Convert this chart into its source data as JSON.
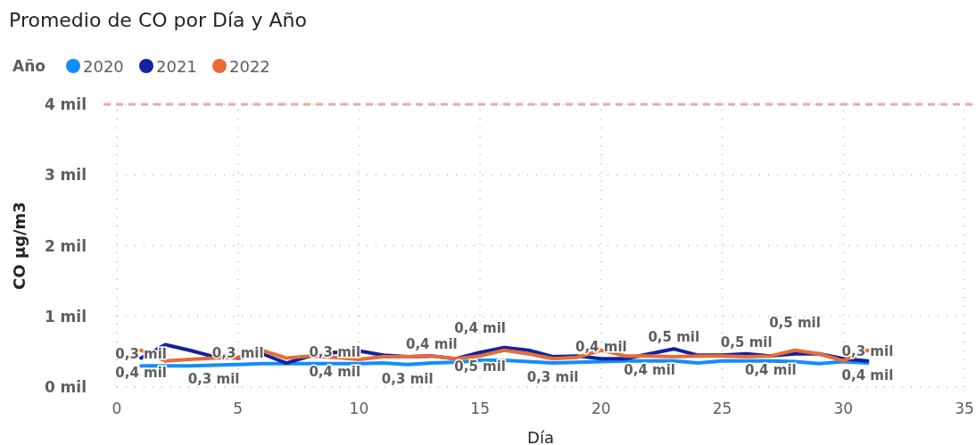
{
  "chart_data": {
    "type": "line",
    "title": "Promedio de CO por Día y Año",
    "xlabel": "Día",
    "ylabel": "CO µg/m3",
    "legend_title": "Año",
    "legend": "top left",
    "grid": true,
    "line_style": "solid",
    "marker": "none",
    "x": [
      1,
      2,
      3,
      4,
      5,
      6,
      7,
      8,
      9,
      10,
      11,
      12,
      13,
      14,
      15,
      16,
      17,
      18,
      19,
      20,
      21,
      22,
      23,
      24,
      25,
      26,
      27,
      28,
      29,
      30,
      31
    ],
    "xlim": [
      0,
      35
    ],
    "xticks": [
      0,
      5,
      10,
      15,
      20,
      25,
      30,
      35
    ],
    "ylim": [
      0,
      4
    ],
    "yticks": [
      {
        "value": 0,
        "label": "0 mil"
      },
      {
        "value": 1,
        "label": "1 mil"
      },
      {
        "value": 2,
        "label": "2 mil"
      },
      {
        "value": 3,
        "label": "3 mil"
      },
      {
        "value": 4,
        "label": "4 mil"
      }
    ],
    "series": [
      {
        "name": "2020",
        "color": "#118dff",
        "values": [
          0.3,
          0.3,
          0.3,
          0.31,
          0.32,
          0.33,
          0.33,
          0.33,
          0.33,
          0.33,
          0.34,
          0.32,
          0.34,
          0.35,
          0.38,
          0.38,
          0.36,
          0.34,
          0.35,
          0.36,
          0.37,
          0.37,
          0.37,
          0.34,
          0.37,
          0.37,
          0.37,
          0.36,
          0.33,
          0.36,
          0.34
        ],
        "value_labels": [
          "0,3 mil",
          null,
          null,
          "0,3 mil",
          "0,3 mil",
          null,
          null,
          null,
          "0,3 mil",
          null,
          null,
          "0,3 mil",
          null,
          null,
          null,
          null,
          null,
          "0,3 mil",
          null,
          null,
          null,
          null,
          null,
          null,
          null,
          null,
          null,
          null,
          null,
          null,
          "0,3 mil"
        ]
      },
      {
        "name": "2021",
        "color": "#12239e",
        "values": [
          0.41,
          0.6,
          0.52,
          0.43,
          0.41,
          0.47,
          0.34,
          0.44,
          0.49,
          0.51,
          0.45,
          0.43,
          0.44,
          0.4,
          0.49,
          0.56,
          0.52,
          0.43,
          0.44,
          0.4,
          0.4,
          0.47,
          0.54,
          0.45,
          0.45,
          0.47,
          0.44,
          0.47,
          0.47,
          0.4,
          0.37
        ],
        "value_labels": [
          "0,4 mil",
          null,
          null,
          null,
          null,
          null,
          null,
          null,
          null,
          null,
          null,
          null,
          "0,4 mil",
          null,
          "0,5 mil",
          null,
          null,
          null,
          null,
          "0,4 mil",
          null,
          null,
          "0,5 mil",
          null,
          null,
          "0,5 mil",
          null,
          null,
          null,
          null,
          "0,4 mil"
        ]
      },
      {
        "name": "2022",
        "color": "#e66c37",
        "values": [
          0.52,
          0.37,
          0.39,
          0.41,
          0.42,
          0.52,
          0.41,
          0.44,
          0.42,
          0.39,
          0.43,
          0.43,
          0.44,
          0.4,
          0.44,
          0.52,
          0.47,
          0.4,
          0.42,
          0.52,
          0.44,
          0.44,
          0.43,
          0.44,
          0.44,
          0.43,
          0.44,
          0.52,
          0.47,
          0.37,
          0.52
        ],
        "value_labels": [
          null,
          null,
          null,
          null,
          null,
          null,
          null,
          null,
          "0,4 mil",
          null,
          null,
          null,
          null,
          null,
          "0,4 mil",
          null,
          null,
          null,
          null,
          null,
          null,
          "0,4 mil",
          null,
          null,
          null,
          null,
          "0,4 mil",
          "0,5 mil",
          null,
          null,
          null
        ]
      }
    ],
    "ref_lines": [
      {
        "axis": "y",
        "value": 4,
        "color": "#f4a3a3",
        "line_style": "dashed"
      }
    ]
  }
}
